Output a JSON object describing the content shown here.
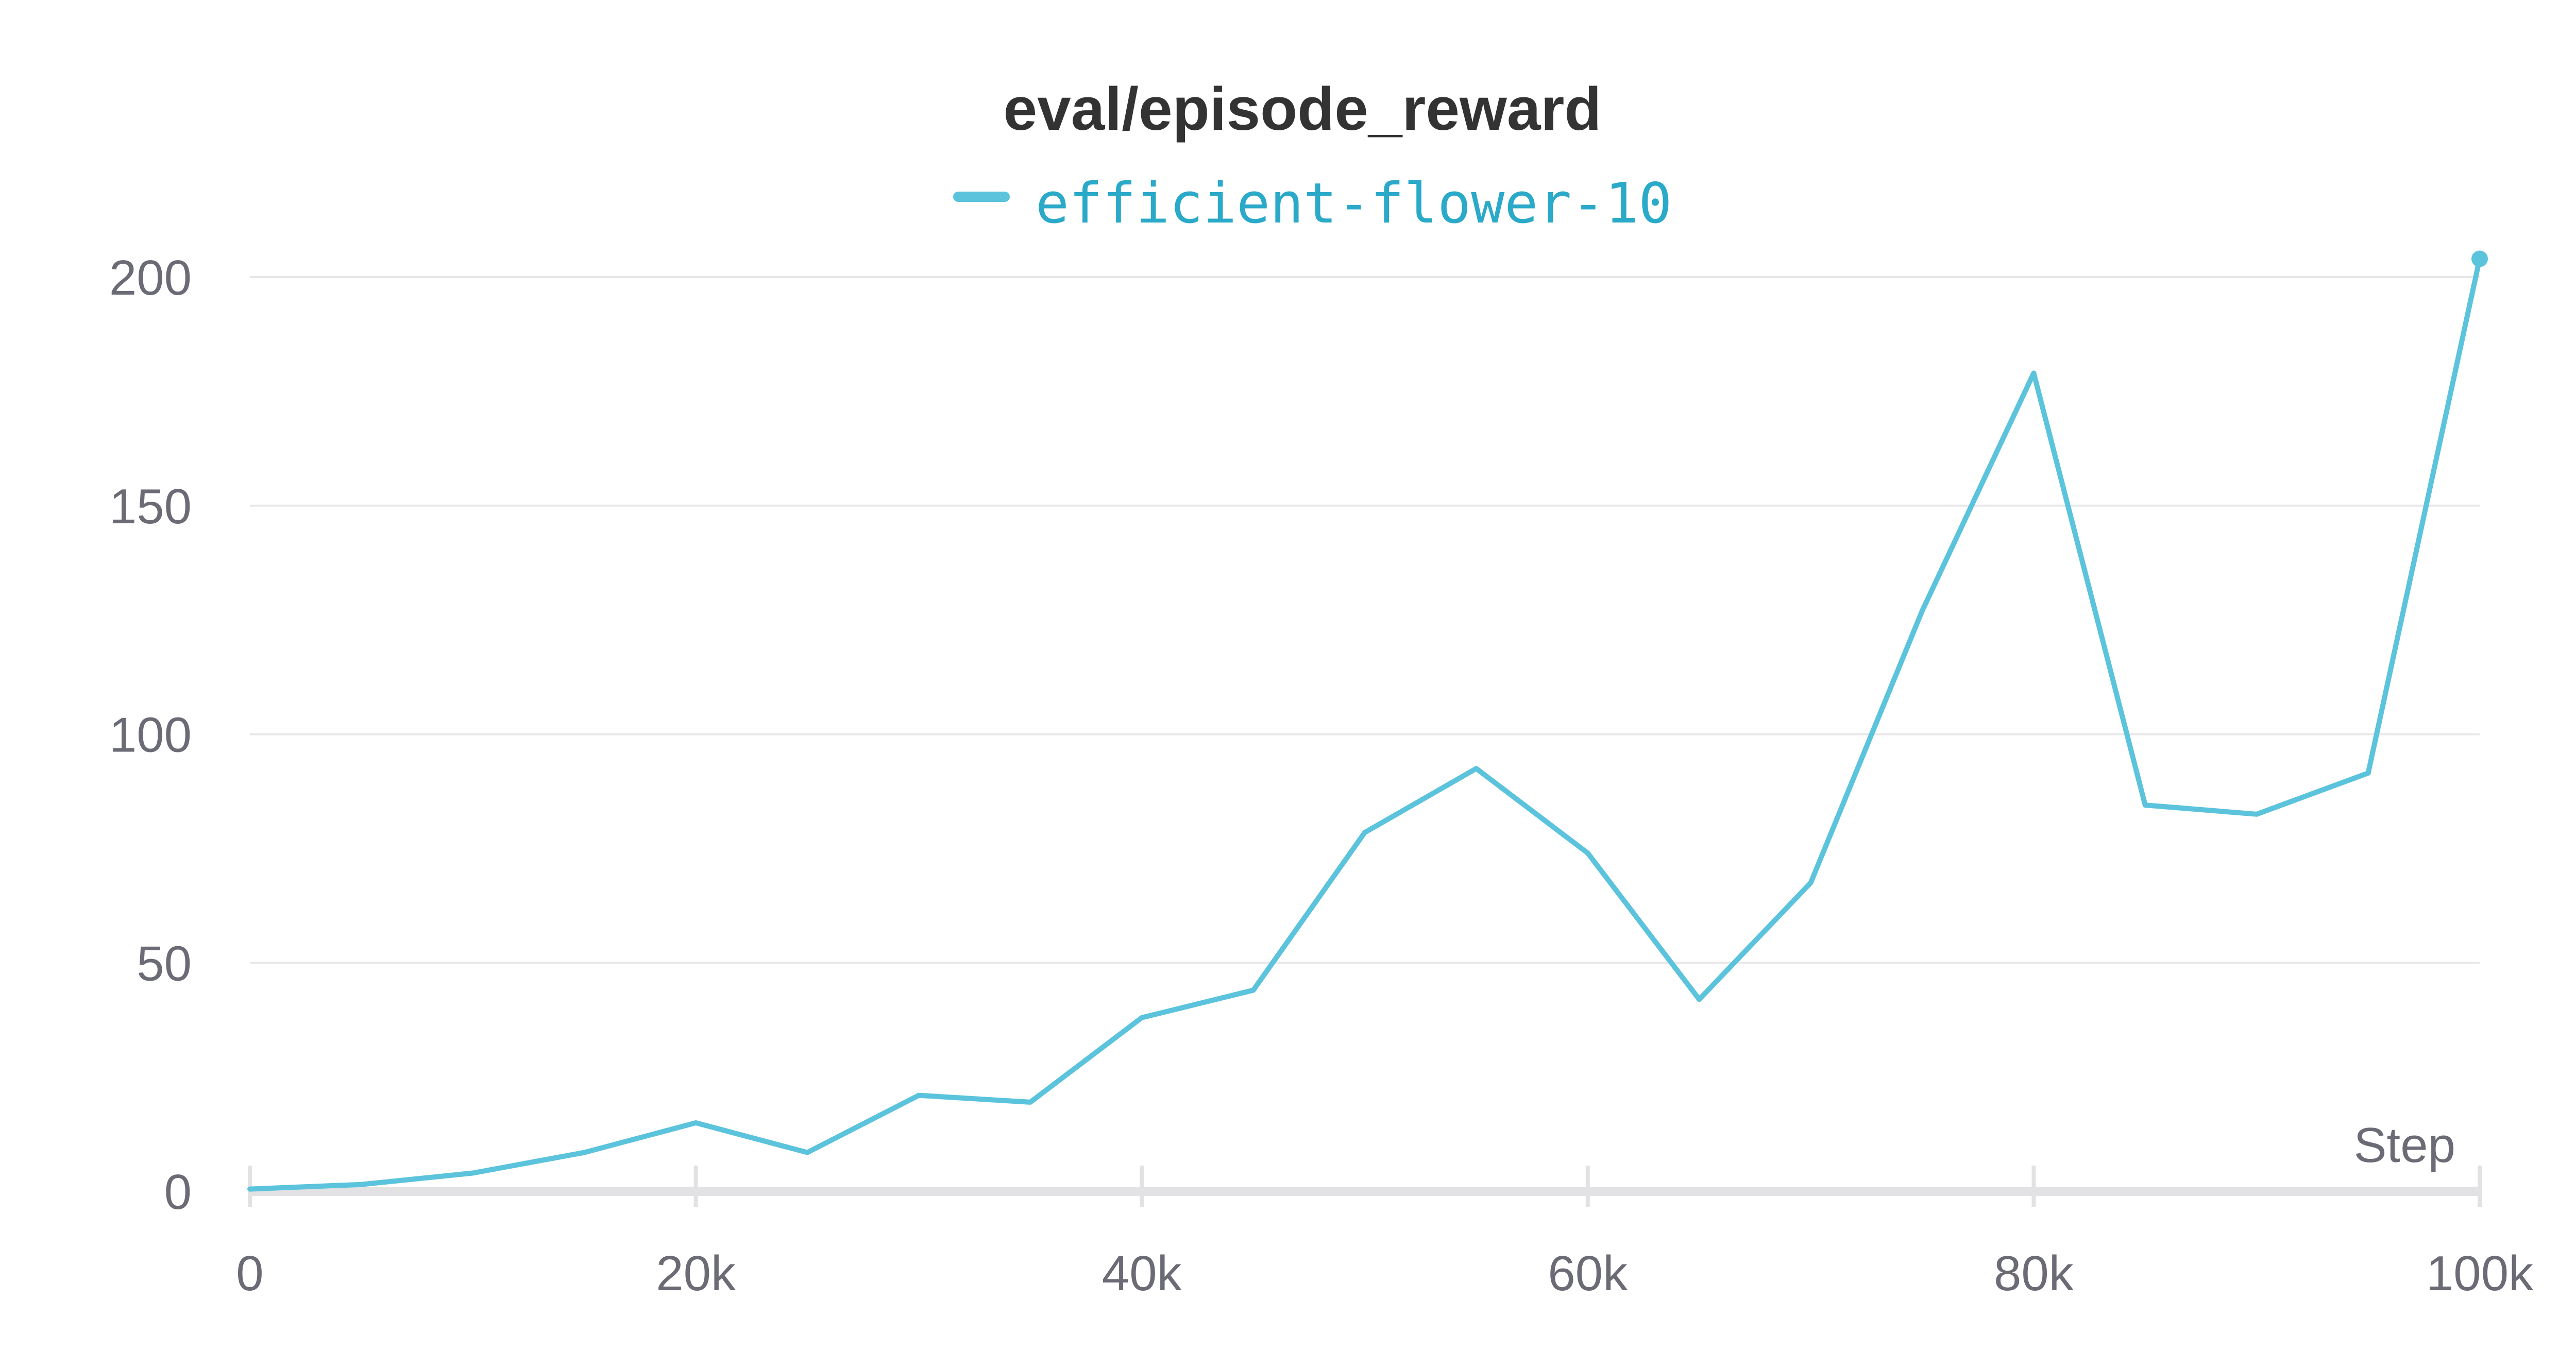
{
  "chart_data": {
    "type": "line",
    "title": "eval/episode_reward",
    "xlabel": "Step",
    "ylabel": "",
    "xlim": [
      0,
      100000
    ],
    "ylim": [
      0,
      200
    ],
    "grid": true,
    "legend_position": "top-center",
    "x_ticks": [
      0,
      20000,
      40000,
      60000,
      80000,
      100000
    ],
    "x_tick_labels": [
      "0",
      "20k",
      "40k",
      "60k",
      "80k",
      "100k"
    ],
    "y_ticks": [
      0,
      50,
      100,
      150,
      200
    ],
    "y_tick_labels": [
      "0",
      "50",
      "100",
      "150",
      "200"
    ],
    "x": [
      0,
      5000,
      10000,
      15000,
      20000,
      25000,
      30000,
      35000,
      40000,
      45000,
      50000,
      55000,
      60000,
      65000,
      70000,
      75000,
      80000,
      85000,
      90000,
      95000,
      100000
    ],
    "series": [
      {
        "name": "efficient-flower-10",
        "color": "#5bc3dc",
        "values": [
          0.5,
          1.5,
          4,
          8.5,
          15,
          8.5,
          21,
          19.5,
          38,
          44,
          78.5,
          92.5,
          74,
          42,
          67.5,
          127,
          179,
          84.5,
          82.5,
          91.5,
          204
        ]
      }
    ]
  }
}
